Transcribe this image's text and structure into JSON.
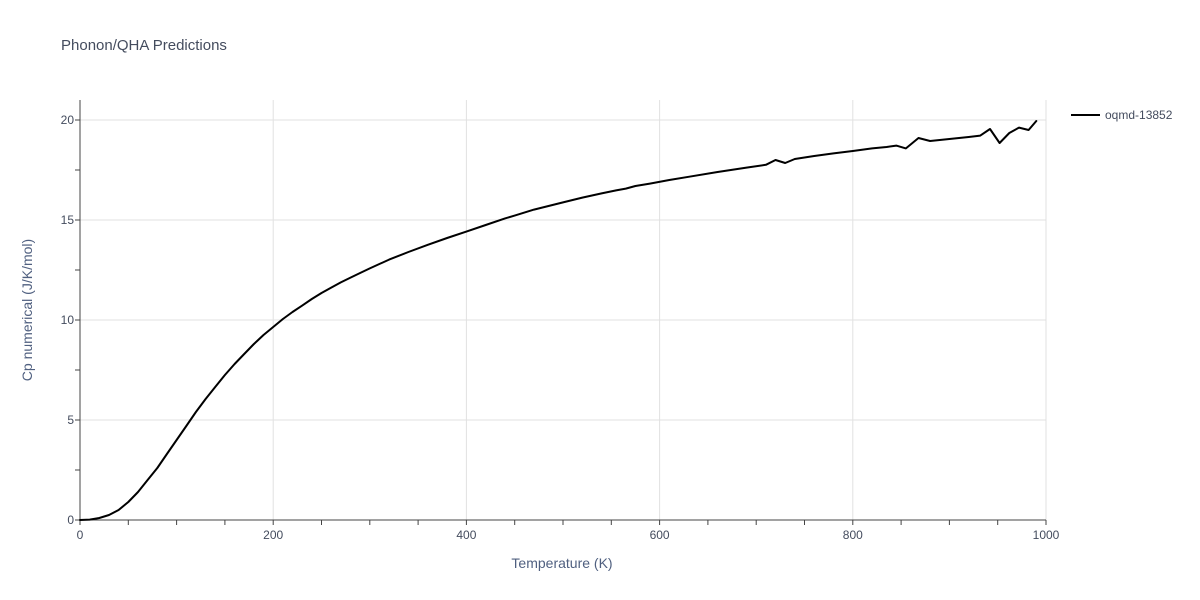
{
  "chart_data": {
    "type": "line",
    "title": "Phonon/QHA Predictions",
    "xlabel": "Temperature (K)",
    "ylabel": "Cp numerical (J/K/mol)",
    "xlim": [
      0,
      1000
    ],
    "ylim": [
      0,
      21
    ],
    "xticks": [
      0,
      200,
      400,
      600,
      800,
      1000
    ],
    "yticks": [
      0,
      5,
      10,
      15,
      20
    ],
    "xtick_labels": [
      "0",
      "200",
      "400",
      "600",
      "800",
      "1000"
    ],
    "ytick_labels": [
      "0",
      "5",
      "10",
      "15",
      "20"
    ],
    "grid": true,
    "legend_position": "top-right",
    "line_color": "#000000",
    "series": [
      {
        "name": "oqmd-13852",
        "x": [
          0,
          10,
          20,
          30,
          40,
          50,
          60,
          70,
          80,
          90,
          100,
          110,
          120,
          130,
          140,
          150,
          160,
          170,
          180,
          190,
          200,
          210,
          220,
          230,
          240,
          250,
          260,
          270,
          280,
          290,
          300,
          320,
          340,
          360,
          380,
          400,
          420,
          440,
          450,
          470,
          500,
          520,
          540,
          555,
          565,
          575,
          590,
          610,
          630,
          660,
          690,
          710,
          720,
          730,
          740,
          760,
          780,
          800,
          820,
          835,
          845,
          855,
          868,
          880,
          900,
          920,
          932,
          942,
          952,
          962,
          972,
          982,
          990
        ],
        "y": [
          0,
          0.02,
          0.1,
          0.25,
          0.5,
          0.9,
          1.4,
          2.0,
          2.6,
          3.3,
          4.0,
          4.7,
          5.4,
          6.05,
          6.65,
          7.25,
          7.8,
          8.3,
          8.8,
          9.25,
          9.65,
          10.05,
          10.4,
          10.72,
          11.05,
          11.35,
          11.62,
          11.88,
          12.12,
          12.35,
          12.58,
          13.02,
          13.4,
          13.76,
          14.1,
          14.42,
          14.75,
          15.08,
          15.22,
          15.52,
          15.88,
          16.12,
          16.33,
          16.48,
          16.57,
          16.7,
          16.82,
          17.0,
          17.16,
          17.4,
          17.62,
          17.76,
          18.0,
          17.85,
          18.05,
          18.2,
          18.33,
          18.45,
          18.58,
          18.65,
          18.72,
          18.58,
          19.1,
          18.95,
          19.05,
          19.15,
          19.22,
          19.55,
          18.85,
          19.35,
          19.62,
          19.5,
          19.95
        ]
      }
    ]
  }
}
